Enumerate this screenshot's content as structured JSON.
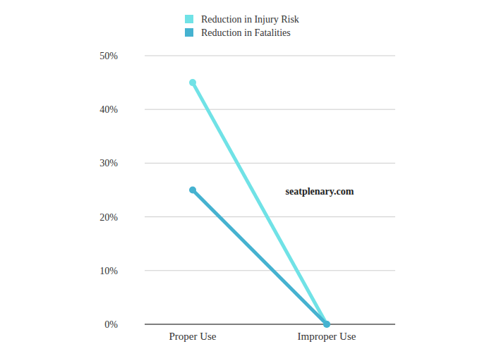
{
  "chart_data": {
    "type": "line",
    "categories": [
      "Proper Use",
      "Improper Use"
    ],
    "series": [
      {
        "name": "Reduction in Injury Risk",
        "color": "#70e2e6",
        "values": [
          45,
          0
        ],
        "marker": "circle",
        "line_style": "solid"
      },
      {
        "name": "Reduction in Fatalities",
        "color": "#45b2d0",
        "values": [
          25,
          0
        ],
        "marker": "circle",
        "line_style": "solid"
      }
    ],
    "ylim": [
      0,
      50
    ],
    "yticks": [
      {
        "value": 0,
        "label": "0%"
      },
      {
        "value": 10,
        "label": "10%"
      },
      {
        "value": 20,
        "label": "20%"
      },
      {
        "value": 30,
        "label": "30%"
      },
      {
        "value": 40,
        "label": "40%"
      },
      {
        "value": 50,
        "label": "50%"
      }
    ],
    "grid": true,
    "legend": "top",
    "annotation": "seatplenary.com"
  }
}
